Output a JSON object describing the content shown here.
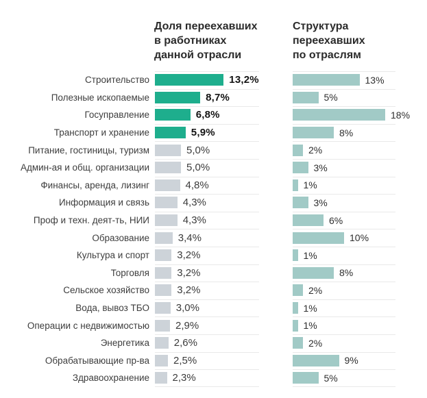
{
  "titles": {
    "left": "Доля переехавших\nв работниках\nданной отрасли",
    "right": "Структура\nпереехавших\nпо отраслям"
  },
  "colors": {
    "highlight_bar": "#1EAE8D",
    "muted_bar": "#CDD3D9",
    "structure_bar": "#A1CAC6",
    "separator": "#E9E9E9",
    "title_text": "#2B2B2B",
    "label_text": "#3D3D3D"
  },
  "chart_data": {
    "type": "bar",
    "orientation": "horizontal",
    "title": "",
    "xlabel": "",
    "ylabel": "",
    "xmax": 20,
    "grid": "row-separators-only",
    "legend_position": "none",
    "highlight_count": 4,
    "categories": [
      "Строительство",
      "Полезные ископаемые",
      "Госуправление",
      "Транспорт и хранение",
      "Питание, гостиницы, туризм",
      "Админ-ая и общ. организации",
      "Финансы, аренда, лизинг",
      "Информация и связь",
      "Проф и техн. деят-ть, НИИ",
      "Образование",
      "Культура и спорт",
      "Торговля",
      "Сельское хозяйство",
      "Вода, вывоз ТБО",
      "Операции с недвижимостью",
      "Энергетика",
      "Обрабатывающие пр-ва",
      "Здравоохранение"
    ],
    "series": [
      {
        "name": "Доля переехавших в работниках данной отрасли",
        "values": [
          13.2,
          8.7,
          6.8,
          5.9,
          5.0,
          5.0,
          4.8,
          4.3,
          4.3,
          3.4,
          3.2,
          3.2,
          3.2,
          3.0,
          2.9,
          2.6,
          2.5,
          2.3
        ],
        "labels": [
          "13,2%",
          "8,7%",
          "6,8%",
          "5,9%",
          "5,0%",
          "5,0%",
          "4,8%",
          "4,3%",
          "4,3%",
          "3,4%",
          "3,2%",
          "3,2%",
          "3,2%",
          "3,0%",
          "2,9%",
          "2,6%",
          "2,5%",
          "2,3%"
        ]
      },
      {
        "name": "Структура переехавших по отраслям",
        "values": [
          13,
          5,
          18,
          8,
          2,
          3,
          1,
          3,
          6,
          10,
          1,
          8,
          2,
          1,
          1,
          2,
          9,
          5
        ],
        "labels": [
          "13%",
          "5%",
          "18%",
          "8%",
          "2%",
          "3%",
          "1%",
          "3%",
          "6%",
          "10%",
          "1%",
          "8%",
          "2%",
          "1%",
          "1%",
          "2%",
          "9%",
          "5%"
        ]
      }
    ]
  }
}
